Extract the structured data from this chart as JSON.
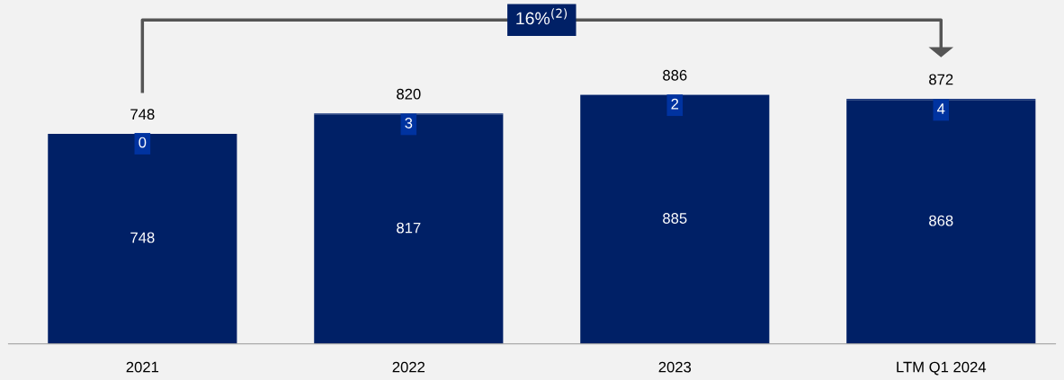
{
  "chart_data": {
    "type": "bar",
    "stacked": true,
    "data_labels": true,
    "categories": [
      "2021",
      "2022",
      "2023",
      "LTM Q1 2024"
    ],
    "series": [
      {
        "color": "#002066",
        "values": [
          748,
          817,
          885,
          868
        ]
      },
      {
        "color": "#1d3a80",
        "values": [
          0,
          3,
          2,
          4
        ]
      }
    ],
    "totals": [
      "748",
      "820",
      "886",
      "872"
    ],
    "annotations": [
      "16%$^{(2)}$"
    ],
    "grid": false
  }
}
